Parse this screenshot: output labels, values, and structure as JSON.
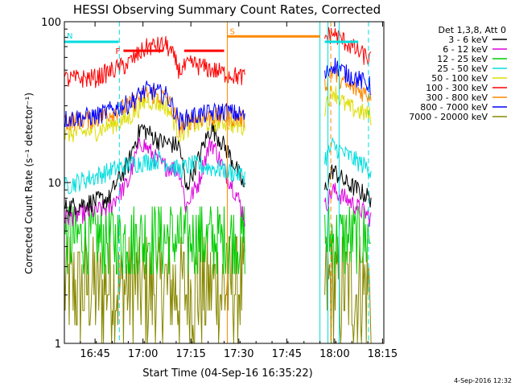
{
  "chart_data": {
    "type": "line",
    "title": "HESSI Observing Summary Count Rates, Corrected",
    "xlabel": "Start Time (04-Sep-16 16:35:22)",
    "ylabel": "Corrected Count Rate (s⁻¹ detector⁻¹)",
    "y_scale": "log",
    "ylim": [
      1,
      100
    ],
    "y_ticks": [
      "1",
      "10",
      "100"
    ],
    "xlim_minutes": [
      0,
      100
    ],
    "x_ticks": [
      {
        "label": "16:45",
        "t": 9.6
      },
      {
        "label": "17:00",
        "t": 24.6
      },
      {
        "label": "17:15",
        "t": 39.6
      },
      {
        "label": "17:30",
        "t": 54.6
      },
      {
        "label": "17:45",
        "t": 69.6
      },
      {
        "label": "18:00",
        "t": 84.6
      },
      {
        "label": "18:15",
        "t": 99.6
      }
    ],
    "legend_position": "top-right",
    "legend_header": "Det 1,3,8, Att 0",
    "data_gap_minutes": [
      56.5,
      81.5
    ],
    "series": [
      {
        "name": "3 - 6 keV",
        "color": "#000000",
        "base": 8,
        "x": [
          0,
          14,
          20,
          24,
          30,
          36,
          38,
          42,
          46,
          50,
          56.5,
          81.5,
          84,
          88,
          92,
          96
        ],
        "y": [
          7,
          8,
          13,
          22,
          18,
          17,
          9,
          14,
          22,
          17,
          9,
          9,
          12,
          10,
          9,
          8
        ]
      },
      {
        "name": "6 - 12 keV",
        "color": "#dd00dd",
        "base": 6.5,
        "x": [
          0,
          14,
          20,
          24,
          30,
          36,
          38,
          42,
          46,
          50,
          56.5,
          81.5,
          84,
          88,
          92,
          96
        ],
        "y": [
          6,
          7,
          10,
          18,
          13,
          12,
          7,
          10,
          18,
          12,
          6,
          7,
          9,
          8,
          7,
          6
        ]
      },
      {
        "name": "12 - 25 keV",
        "color": "#00cc00",
        "base": 5,
        "x": [
          0,
          56.5,
          81.5,
          96
        ],
        "y": [
          5,
          5,
          5,
          5
        ]
      },
      {
        "name": "25 - 50 keV",
        "color": "#00dddd",
        "base": 10,
        "x": [
          0,
          10,
          20,
          30,
          36,
          40,
          50,
          56.5,
          81.5,
          84,
          88,
          96
        ],
        "y": [
          9.5,
          11,
          13,
          14,
          12,
          13,
          12,
          11,
          14,
          17,
          15,
          12
        ]
      },
      {
        "name": "50 - 100 keV",
        "color": "#dddd00",
        "base": 21,
        "x": [
          0,
          10,
          20,
          26,
          32,
          36,
          40,
          50,
          56.5,
          81.5,
          84,
          88,
          96
        ],
        "y": [
          20,
          21,
          25,
          33,
          30,
          20,
          23,
          24,
          22,
          30,
          38,
          30,
          26
        ]
      },
      {
        "name": "100 - 300 keV",
        "color": "#ff0000",
        "base": 45,
        "x": [
          0,
          10,
          20,
          26,
          32,
          36,
          40,
          44,
          50,
          56.5,
          81.5,
          84,
          88,
          92,
          96
        ],
        "y": [
          44,
          45,
          55,
          70,
          72,
          50,
          55,
          52,
          48,
          45,
          80,
          85,
          75,
          65,
          58
        ]
      },
      {
        "name": "300 - 800 keV",
        "color": "#ff8800",
        "base": 25,
        "x": [
          0,
          10,
          20,
          26,
          32,
          36,
          40,
          50,
          56.5,
          81.5,
          84,
          88,
          96
        ],
        "y": [
          24,
          25,
          30,
          36,
          34,
          22,
          25,
          26,
          25,
          40,
          50,
          40,
          35
        ]
      },
      {
        "name": "800 - 7000 keV",
        "color": "#0000ff",
        "base": 26,
        "x": [
          0,
          10,
          20,
          26,
          32,
          36,
          40,
          50,
          56.5,
          81.5,
          84,
          88,
          96
        ],
        "y": [
          25,
          26,
          31,
          38,
          35,
          24,
          26,
          28,
          26,
          45,
          55,
          48,
          40
        ]
      },
      {
        "name": "7000 - 20000 keV",
        "color": "#888800",
        "base": 1.5,
        "x": [
          0,
          56.5,
          81.5,
          96
        ],
        "y": [
          1.5,
          1.5,
          1.5,
          1.5
        ]
      }
    ],
    "flag_bars": [
      {
        "label": "N",
        "color": "#00dddd",
        "t_start": 0,
        "t_end": 17,
        "y": 75
      },
      {
        "label": "F",
        "color": "#ff0000",
        "t_start": 18.5,
        "t_end": 31,
        "y": 66
      },
      {
        "label": "",
        "color": "#ff0000",
        "t_start": 37.5,
        "t_end": 50,
        "y": 66
      },
      {
        "label": "S",
        "color": "#ff8800",
        "t_start": 51,
        "t_end": 80,
        "y": 81
      },
      {
        "label": "",
        "color": "#00dddd",
        "t_start": 81.5,
        "t_end": 92,
        "y": 75
      }
    ],
    "vertical_markers": [
      {
        "t": 17.2,
        "color": "#00dddd",
        "style": "dashed"
      },
      {
        "t": 51.0,
        "color": "#ff8800",
        "style": "solid"
      },
      {
        "t": 80.0,
        "color": "#00dddd",
        "style": "solid"
      },
      {
        "t": 82.5,
        "color": "#00dddd",
        "style": "solid"
      },
      {
        "t": 83.4,
        "color": "#ff8800",
        "style": "dashed"
      },
      {
        "t": 86.0,
        "color": "#00dddd",
        "style": "solid"
      },
      {
        "t": 95.2,
        "color": "#00dddd",
        "style": "dashed"
      }
    ]
  },
  "footer_timestamp": "4-Sep-2016 12:32"
}
